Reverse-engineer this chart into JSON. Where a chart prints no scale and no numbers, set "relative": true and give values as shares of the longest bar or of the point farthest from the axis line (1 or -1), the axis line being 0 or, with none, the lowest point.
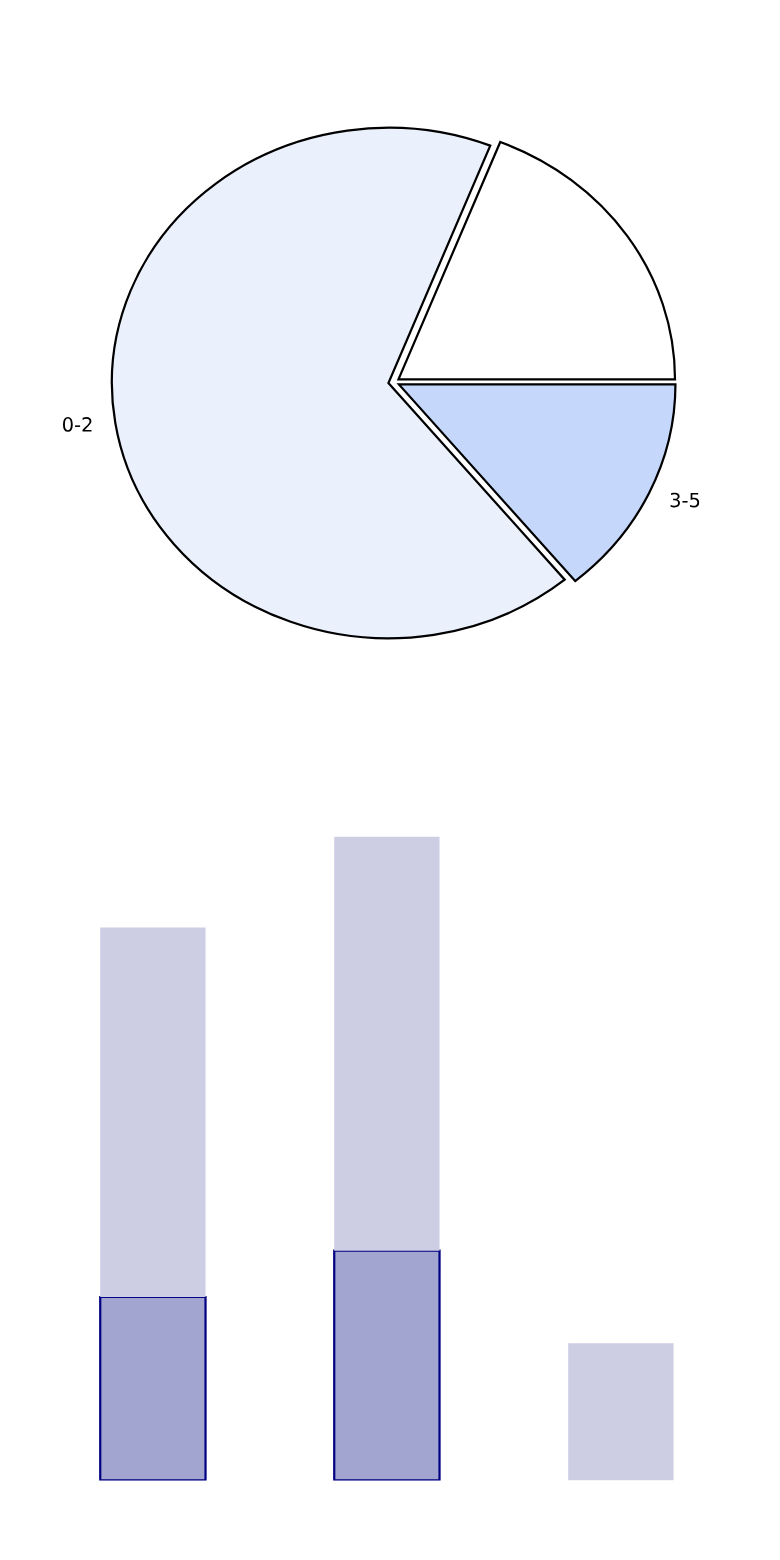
{
  "chart_data": [
    {
      "type": "pie",
      "categories": [
        null,
        "0-2",
        "3-5"
      ],
      "values": [
        19,
        67,
        14
      ],
      "colors": [
        "#ffffff",
        "#eaf0fc",
        "#c5d8fc"
      ]
    },
    {
      "type": "bar",
      "stacked": true,
      "relative": true,
      "categories": [
        null,
        null,
        null
      ],
      "series": [
        {
          "color": "#a3a5d1",
          "values": [
            0.285,
            0.357,
            0
          ]
        },
        {
          "color": "#cdcde4",
          "values": [
            0.574,
            0.643,
            0.213
          ]
        }
      ]
    }
  ]
}
